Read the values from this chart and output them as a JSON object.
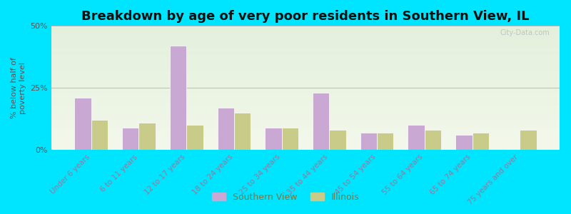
{
  "title": "Breakdown by age of very poor residents in Southern View, IL",
  "categories": [
    "Under 6 years",
    "6 to 11 years",
    "12 to 17 years",
    "18 to 24 years",
    "25 to 34 years",
    "35 to 44 years",
    "45 to 54 years",
    "55 to 64 years",
    "65 to 74 years",
    "75 years and over"
  ],
  "southern_view": [
    21,
    9,
    42,
    17,
    9,
    23,
    7,
    10,
    6,
    0
  ],
  "illinois": [
    12,
    11,
    10,
    15,
    9,
    8,
    7,
    8,
    7,
    8
  ],
  "southern_view_color": "#c9a8d4",
  "illinois_color": "#c8cc88",
  "ylim": [
    0,
    50
  ],
  "yticks": [
    0,
    25,
    50
  ],
  "ytick_labels": [
    "0%",
    "25%",
    "50%"
  ],
  "ylabel": "% below half of\npoverty level",
  "background_outer": "#00e5ff",
  "grid_color": "#bbbbbb",
  "bar_width": 0.35,
  "title_fontsize": 13,
  "axis_fontsize": 8,
  "legend_labels": [
    "Southern View",
    "Illinois"
  ],
  "xtick_color": "#997799",
  "ytick_color": "#555555",
  "watermark": "City-Data.com"
}
